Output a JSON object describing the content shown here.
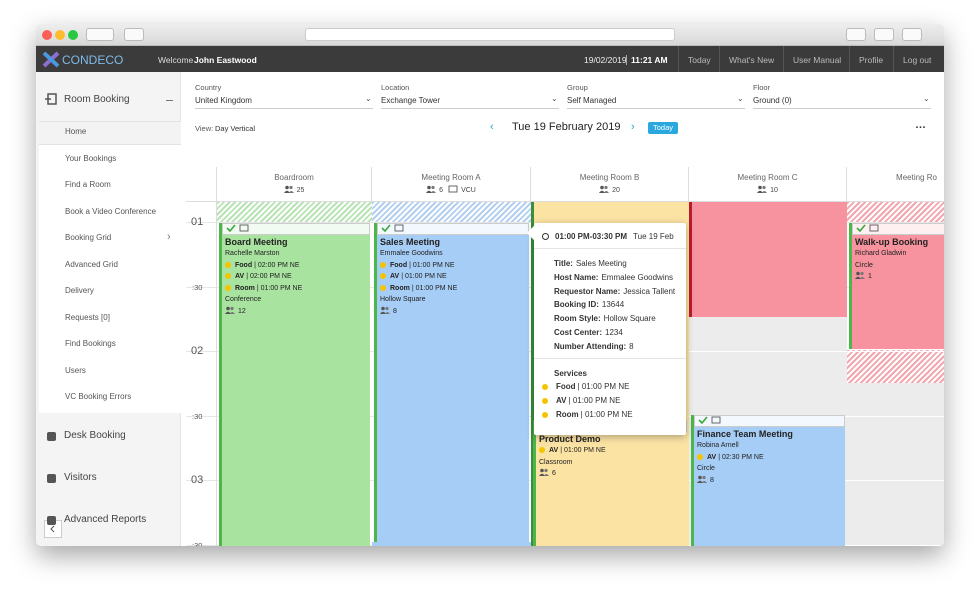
{
  "header": {
    "logo": "CONDECO",
    "welcome": "Welcome",
    "user": "John Eastwood",
    "date": "19/02/2019",
    "time": "11:21 AM",
    "nav": [
      "Today",
      "What's New",
      "User Manual",
      "Profile",
      "Log out"
    ]
  },
  "sidebar": {
    "section": "Room Booking",
    "menu": [
      "Home",
      "Your Bookings",
      "Find a Room",
      "Book a Video Conference",
      "Booking Grid",
      "Advanced Grid",
      "Delivery",
      "Requests [0]",
      "Find Bookings",
      "Users",
      "VC Booking Errors"
    ],
    "other": [
      "Desk Booking",
      "Visitors",
      "Advanced Reports"
    ]
  },
  "filters": [
    {
      "label": "Country",
      "value": "United Kingdom"
    },
    {
      "label": "Location",
      "value": "Exchange Tower"
    },
    {
      "label": "Group",
      "value": "Self Managed"
    },
    {
      "label": "Floor",
      "value": "Ground (0)"
    }
  ],
  "toolbar": {
    "view_label": "View:",
    "view": "Day Vertical",
    "date": "Tue 19 February 2019",
    "today": "Today"
  },
  "rooms": [
    {
      "name": "Boardroom",
      "capacity": 25
    },
    {
      "name": "Meeting Room A",
      "capacity": 6,
      "extra": "VCU"
    },
    {
      "name": "Meeting Room B",
      "capacity": 20
    },
    {
      "name": "Meeting Room C",
      "capacity": 10
    },
    {
      "name": "Meeting Ro"
    }
  ],
  "times": [
    "01",
    ":30",
    "02",
    ":30",
    "03",
    ":30"
  ],
  "bookings": [
    {
      "title": "Board Meeting",
      "host": "Rachelle Marston",
      "services": [
        {
          "name": "Food",
          "time": "| 02:00 PM NE"
        },
        {
          "name": "AV",
          "time": "| 02:00 PM NE"
        },
        {
          "name": "Room",
          "time": "| 01:00 PM NE"
        }
      ],
      "style": "Conference",
      "attendees": 12
    },
    {
      "title": "Sales Meeting",
      "host": "Emmalee Goodwins",
      "services": [
        {
          "name": "Food",
          "time": "| 01:00 PM NE"
        },
        {
          "name": "AV",
          "time": "| 01:00 PM NE"
        },
        {
          "name": "Room",
          "time": "| 01:00 PM NE"
        }
      ],
      "style": "Hollow Square",
      "attendees": 8
    },
    {
      "title": "Product Demo",
      "services": [
        {
          "name": "AV",
          "time": "| 01:00 PM NE"
        }
      ],
      "style": "Classroom",
      "attendees": 6
    },
    {
      "title": "Finance Team Meeting",
      "host": "Robina Arnell",
      "services": [
        {
          "name": "AV",
          "time": "| 02:30 PM NE"
        }
      ],
      "style": "Circle",
      "attendees": 8
    },
    {
      "title": "Walk-up Booking",
      "host": "Richard Gladwin",
      "services": [],
      "style": "Circle",
      "attendees": 1
    }
  ],
  "popup": {
    "time": "01:00 PM-03:30 PM",
    "date": "Tue 19 Feb",
    "fields": [
      {
        "label": "Title:",
        "value": "Sales Meeting"
      },
      {
        "label": "Host Name:",
        "value": "Emmalee Goodwins"
      },
      {
        "label": "Requestor Name:",
        "value": "Jessica Tallent"
      },
      {
        "label": "Booking ID:",
        "value": "13644"
      },
      {
        "label": "Room Style:",
        "value": "Hollow Square"
      },
      {
        "label": "Cost Center:",
        "value": "1234"
      },
      {
        "label": "Number Attending:",
        "value": "8"
      }
    ],
    "services_title": "Services",
    "services": [
      {
        "name": "Food",
        "time": "| 01:00 PM NE"
      },
      {
        "name": "AV",
        "time": "| 01:00 PM NE"
      },
      {
        "name": "Room",
        "time": "| 01:00 PM NE"
      }
    ]
  }
}
